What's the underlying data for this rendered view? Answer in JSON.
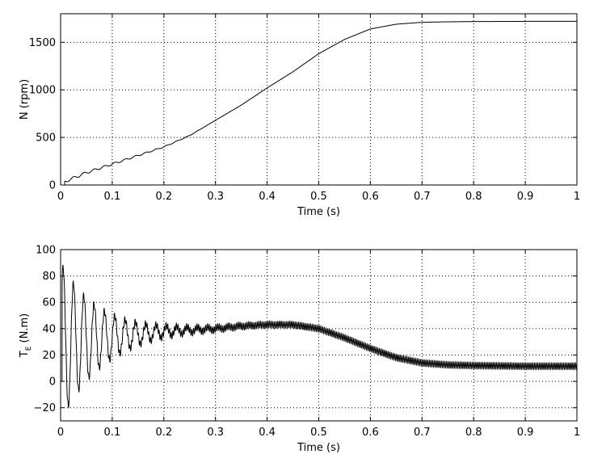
{
  "chart_data": [
    {
      "type": "line",
      "xlabel": "Time (s)",
      "ylabel": "N (rpm)",
      "xlim": [
        0,
        1
      ],
      "ylim": [
        0,
        1800
      ],
      "xticks": [
        0,
        0.1,
        0.2,
        0.3,
        0.4,
        0.5,
        0.6,
        0.7,
        0.8,
        0.9,
        1
      ],
      "xtick_labels": [
        "0",
        "0.1",
        "0.2",
        "0.3",
        "0.4",
        "0.5",
        "0.6",
        "0.7",
        "0.8",
        "0.9",
        "1"
      ],
      "yticks": [
        0,
        500,
        1000,
        1500
      ],
      "ytick_labels": [
        "0",
        "500",
        "1000",
        "1500"
      ],
      "grid": true,
      "series": [
        {
          "x": [
            0,
            0.01,
            0.05,
            0.1,
            0.15,
            0.2,
            0.25,
            0.3,
            0.35,
            0.4,
            0.45,
            0.5,
            0.55,
            0.6,
            0.65,
            0.7,
            0.75,
            0.8,
            0.9,
            1.0
          ],
          "values": [
            0,
            40,
            130,
            220,
            310,
            400,
            520,
            680,
            840,
            1020,
            1190,
            1380,
            1530,
            1640,
            1690,
            1710,
            1715,
            1718,
            1720,
            1720
          ],
          "ripple": {
            "amplitude": 15,
            "frequency": 50,
            "until": 0.3
          }
        }
      ]
    },
    {
      "type": "line",
      "xlabel": "Time (s)",
      "ylabel": "T",
      "ylabel_subscript": "E",
      "ylabel_suffix": " (N.m)",
      "xlim": [
        0,
        1
      ],
      "ylim": [
        -30,
        100
      ],
      "xticks": [
        0,
        0.1,
        0.2,
        0.3,
        0.4,
        0.5,
        0.6,
        0.7,
        0.8,
        0.9,
        1
      ],
      "xtick_labels": [
        "0",
        "0.1",
        "0.2",
        "0.3",
        "0.4",
        "0.5",
        "0.6",
        "0.7",
        "0.8",
        "0.9",
        "1"
      ],
      "yticks": [
        -20,
        0,
        20,
        40,
        60,
        80,
        100
      ],
      "ytick_labels": [
        "−20",
        "0",
        "20",
        "40",
        "60",
        "80",
        "100"
      ],
      "grid": true,
      "series": [
        {
          "mean": {
            "x": [
              0,
              0.05,
              0.1,
              0.15,
              0.2,
              0.25,
              0.3,
              0.35,
              0.4,
              0.45,
              0.5,
              0.55,
              0.6,
              0.65,
              0.7,
              0.75,
              0.8,
              0.9,
              1.0
            ],
            "values": [
              30,
              32,
              34,
              36,
              38,
              39,
              40,
              42,
              43,
              43,
              40,
              33,
              25,
              18,
              14,
              12.5,
              12,
              11.5,
              11.5
            ]
          },
          "oscillation": {
            "initial_amplitude": 60,
            "decay_rate": 13,
            "frequency": 50
          },
          "ripple": {
            "amplitude": 2.5,
            "frequency": 300
          }
        }
      ]
    }
  ]
}
